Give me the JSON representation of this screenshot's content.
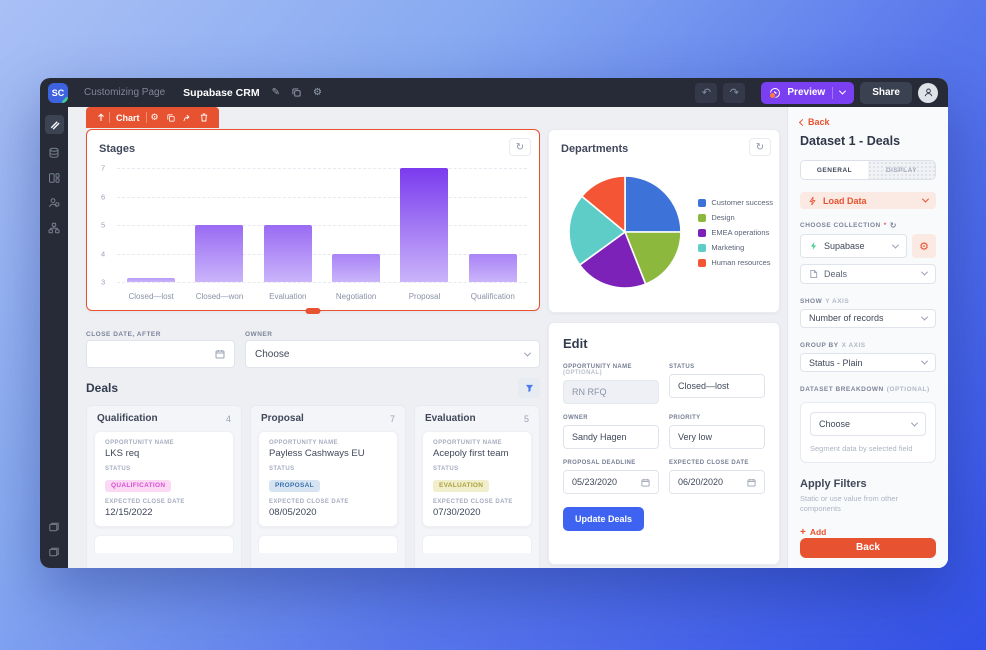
{
  "topbar": {
    "logo_text": "SC",
    "breadcrumb": "Customizing Page",
    "app_title": "Supabase CRM",
    "preview_label": "Preview",
    "share_label": "Share"
  },
  "component_toolbar": {
    "label": "Chart"
  },
  "filters": {
    "close_date_label": "CLOSE DATE, AFTER",
    "close_date_value": "",
    "owner_label": "OWNER",
    "owner_value": "Choose"
  },
  "deals": {
    "heading": "Deals",
    "card_labels": {
      "name": "OPPORTUNITY NAME",
      "status": "STATUS",
      "date": "EXPECTED CLOSE DATE"
    },
    "columns": [
      {
        "title": "Qualification",
        "count": "4",
        "card": {
          "name": "LKS req",
          "status": "QUALIFICATION",
          "date": "12/15/2022"
        }
      },
      {
        "title": "Proposal",
        "count": "7",
        "card": {
          "name": "Payless Cashways EU",
          "status": "PROPOSAL",
          "date": "08/05/2020"
        }
      },
      {
        "title": "Evaluation",
        "count": "5",
        "card": {
          "name": "Acepoly first team",
          "status": "EVALUATION",
          "date": "07/30/2020"
        }
      }
    ]
  },
  "edit_form": {
    "title": "Edit",
    "fields": [
      {
        "label": "OPPORTUNITY NAME",
        "suffix": "(OPTIONAL)",
        "value": "RN RFQ"
      },
      {
        "label": "STATUS",
        "suffix": "",
        "value": "Closed—lost"
      },
      {
        "label": "OWNER",
        "suffix": "",
        "value": "Sandy Hagen"
      },
      {
        "label": "PRIORITY",
        "suffix": "",
        "value": "Very low"
      },
      {
        "label": "PROPOSAL DEADLINE",
        "suffix": "",
        "value": "05/23/2020"
      },
      {
        "label": "EXPECTED CLOSE DATE",
        "suffix": "",
        "value": "06/20/2020"
      }
    ],
    "submit_label": "Update Deals"
  },
  "settings_panel": {
    "back_link": "Back",
    "title": "Dataset 1 - Deals",
    "tabs": [
      {
        "label": "GENERAL"
      },
      {
        "label": "DISPLAY"
      }
    ],
    "load_data_label": "Load Data",
    "choose_collection_label": "CHOOSE COLLECTION",
    "required_marker": "*",
    "datasource_value": "Supabase",
    "table_value": "Deals",
    "show_label": "SHOW",
    "show_sub": "Y AXIS",
    "show_value": "Number of records",
    "group_label": "GROUP BY",
    "group_sub": "X AXIS",
    "group_value": "Status - Plain",
    "breakdown_label": "DATASET BREAKDOWN",
    "breakdown_suffix": "(OPTIONAL)",
    "breakdown_value": "Choose",
    "breakdown_help": "Segment data by selected field",
    "apply_filters_title": "Apply Filters",
    "apply_filters_help": "Static or use value from other components",
    "add_label": "Add",
    "back_button": "Back"
  },
  "colors": {
    "accent_orange": "#e75330",
    "preview_purple": "#7b3ff2",
    "update_blue": "#3e63f0",
    "supabase_green": "#3ecf8e"
  },
  "chart_data": [
    {
      "type": "bar",
      "title": "Stages",
      "categories": [
        "Closed—lost",
        "Closed—won",
        "Evaluation",
        "Negotiation",
        "Proposal",
        "Qualification"
      ],
      "values": [
        3,
        5,
        5,
        4,
        7,
        4
      ],
      "ylim": [
        3,
        7
      ],
      "yticks": [
        3,
        4,
        5,
        6,
        7
      ],
      "bar_color_top": "#7a3bee",
      "bar_color_bottom": "#cab4fa",
      "grid": "horizontal-dashed",
      "legend_position": "none"
    },
    {
      "type": "pie",
      "title": "Departments",
      "labels": [
        "Customer success",
        "Design",
        "EMEA operations",
        "Marketing",
        "Human resources"
      ],
      "values_percent": [
        25,
        19,
        21,
        21,
        14
      ],
      "colors": [
        "#3d72d9",
        "#8cb83e",
        "#7d22b8",
        "#5ecdc8",
        "#f45535"
      ],
      "legend_position": "right"
    }
  ]
}
